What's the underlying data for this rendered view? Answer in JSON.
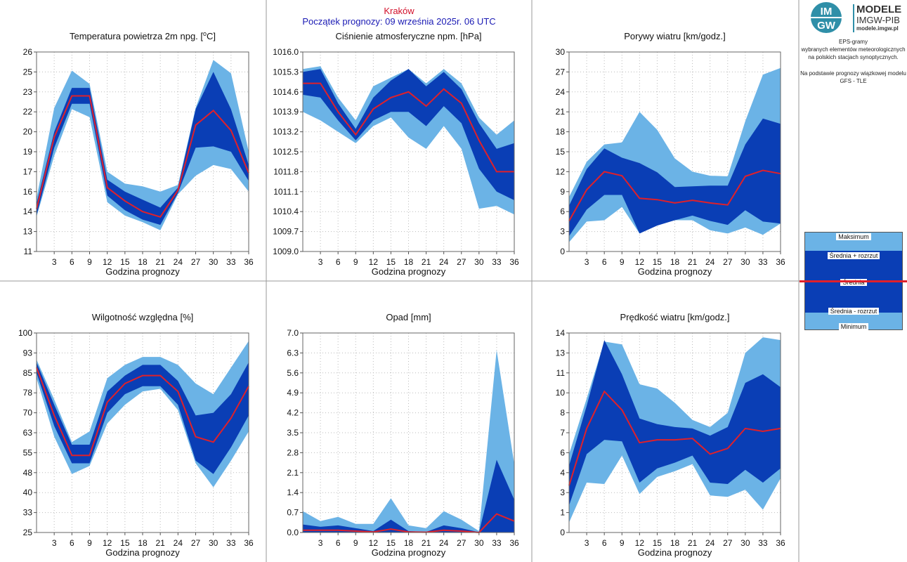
{
  "header": {
    "city": "Kraków",
    "start": "Początek prognozy: 09 września 2025r. 06 UTC"
  },
  "sidebar": {
    "logo_title": "MODELE",
    "logo_org": "IMGW-PIB",
    "logo_url": "modele.imgw.pl",
    "logo_mark_top": "IM",
    "logo_mark_bottom": "GW",
    "desc_lines": [
      "EPS-gramy",
      "wybranych elementów meteorologicznych",
      "na polskich stacjach  synoptycznych."
    ],
    "model_lines": [
      "Na podstawie prognozy wiązkowej modelu",
      "GFS - TLE"
    ]
  },
  "legend": {
    "max": "Maksimum",
    "mean_plus": "Średnia + rozrzut",
    "mean": "Średnia",
    "mean_minus": "Średnia - rozrzut",
    "min": "Minimum"
  },
  "colors": {
    "outer": "#6bb3e6",
    "inner": "#0a3eb5",
    "mean": "#e0202a",
    "frame": "#666666"
  },
  "chart_data": [
    {
      "type": "area",
      "title": "Temperatura powietrza 2m npg. [°C]",
      "title_main": "Temperatura powietrza 2m npg. [",
      "title_sup": "o",
      "title_end": "C]",
      "xlabel": "Godzina prognozy",
      "x": [
        0,
        3,
        6,
        9,
        12,
        15,
        18,
        21,
        24,
        27,
        30,
        33,
        36
      ],
      "xticks": [
        "3",
        "6",
        "9",
        "12",
        "15",
        "18",
        "21",
        "24",
        "27",
        "30",
        "33",
        "36"
      ],
      "ylim": [
        11,
        26
      ],
      "yticks": [
        "11",
        "13",
        "14",
        "16",
        "17",
        "19",
        "20",
        "22",
        "23",
        "25",
        "26"
      ],
      "series": [
        {
          "name": "Maksimum",
          "values": [
            15.0,
            21.8,
            24.6,
            23.6,
            17.0,
            16.1,
            15.9,
            15.5,
            16.0,
            21.8,
            25.4,
            24.4,
            18.5
          ]
        },
        {
          "name": "Średnia + rozrzut",
          "values": [
            14.6,
            20.0,
            23.3,
            23.3,
            16.4,
            15.5,
            14.9,
            14.3,
            15.8,
            21.7,
            24.5,
            21.7,
            17.5
          ]
        },
        {
          "name": "Średnia",
          "values": [
            14.2,
            19.6,
            22.7,
            22.7,
            15.8,
            14.8,
            14.0,
            13.6,
            15.6,
            20.5,
            21.6,
            20.1,
            16.9
          ]
        },
        {
          "name": "Średnia - rozrzut",
          "values": [
            13.7,
            18.8,
            22.1,
            22.1,
            15.2,
            14.1,
            13.4,
            13.0,
            15.4,
            18.8,
            18.9,
            18.5,
            16.3
          ]
        },
        {
          "name": "Minimum",
          "values": [
            13.6,
            18.2,
            21.7,
            21.1,
            14.7,
            13.7,
            13.2,
            12.6,
            15.3,
            16.7,
            17.5,
            17.2,
            15.5
          ]
        }
      ]
    },
    {
      "type": "area",
      "title": "Ciśnienie atmosferyczne npm. [hPa]",
      "xlabel": "Godzina prognozy",
      "x": [
        0,
        3,
        6,
        9,
        12,
        15,
        18,
        21,
        24,
        27,
        30,
        33,
        36
      ],
      "xticks": [
        "3",
        "6",
        "9",
        "12",
        "15",
        "18",
        "21",
        "24",
        "27",
        "30",
        "33",
        "36"
      ],
      "ylim": [
        1009.0,
        1016.0
      ],
      "yticks": [
        "1009.0",
        "1009.7",
        "1010.4",
        "1011.1",
        "1011.8",
        "1012.5",
        "1013.2",
        "1013.9",
        "1014.6",
        "1015.3",
        "1016.0"
      ],
      "series": [
        {
          "name": "Maksimum",
          "values": [
            1015.4,
            1015.5,
            1014.4,
            1013.6,
            1014.8,
            1015.1,
            1015.4,
            1014.9,
            1015.4,
            1014.9,
            1013.7,
            1013.1,
            1013.6
          ]
        },
        {
          "name": "Średnia + rozrzut",
          "values": [
            1015.3,
            1015.4,
            1014.2,
            1013.3,
            1014.4,
            1015.0,
            1015.4,
            1014.8,
            1015.3,
            1014.7,
            1013.5,
            1012.6,
            1012.8
          ]
        },
        {
          "name": "Średnia",
          "values": [
            1014.9,
            1014.9,
            1013.9,
            1013.1,
            1014.0,
            1014.4,
            1014.6,
            1014.1,
            1014.7,
            1014.2,
            1012.9,
            1011.8,
            1011.8
          ]
        },
        {
          "name": "Średnia - rozrzut",
          "values": [
            1014.5,
            1014.4,
            1013.6,
            1012.9,
            1013.6,
            1013.9,
            1013.9,
            1013.4,
            1014.1,
            1013.5,
            1011.9,
            1011.1,
            1010.8
          ]
        },
        {
          "name": "Minimum",
          "values": [
            1013.9,
            1013.6,
            1013.2,
            1012.8,
            1013.4,
            1013.7,
            1013.0,
            1012.6,
            1013.4,
            1012.6,
            1010.5,
            1010.6,
            1010.3
          ]
        }
      ]
    },
    {
      "type": "area",
      "title": "Porywy wiatru [km/godz.]",
      "xlabel": "Godzina prognozy",
      "x": [
        0,
        3,
        6,
        9,
        12,
        15,
        18,
        21,
        24,
        27,
        30,
        33,
        36
      ],
      "xticks": [
        "3",
        "6",
        "9",
        "12",
        "15",
        "18",
        "21",
        "24",
        "27",
        "30",
        "33",
        "36"
      ],
      "ylim": [
        0,
        30
      ],
      "yticks": [
        "0",
        "3",
        "6",
        "9",
        "12",
        "15",
        "18",
        "21",
        "24",
        "27",
        "30"
      ],
      "series": [
        {
          "name": "Maksimum",
          "values": [
            8.2,
            13.5,
            16.1,
            16.4,
            21.0,
            18.3,
            14.0,
            12.0,
            11.4,
            11.3,
            19.6,
            26.6,
            27.6
          ]
        },
        {
          "name": "Średnia + rozrzut",
          "values": [
            6.9,
            12.4,
            15.5,
            14.1,
            13.3,
            11.9,
            9.7,
            9.8,
            9.9,
            9.9,
            16.1,
            20.0,
            19.2
          ]
        },
        {
          "name": "Średnia",
          "values": [
            4.6,
            9.3,
            12.0,
            11.4,
            8.0,
            7.8,
            7.3,
            7.7,
            7.3,
            7.0,
            11.3,
            12.2,
            11.7
          ]
        },
        {
          "name": "Średnia - rozrzut",
          "values": [
            2.3,
            6.3,
            8.5,
            8.5,
            2.7,
            3.9,
            4.7,
            5.4,
            4.6,
            4.0,
            6.2,
            4.5,
            4.2
          ]
        },
        {
          "name": "Minimum",
          "values": [
            1.4,
            4.5,
            4.7,
            6.7,
            2.7,
            4.0,
            4.7,
            4.7,
            3.2,
            2.7,
            3.6,
            2.5,
            4.2
          ]
        }
      ]
    },
    {
      "type": "area",
      "title": "Wilgotność względna [%]",
      "xlabel": "Godzina prognozy",
      "x": [
        0,
        3,
        6,
        9,
        12,
        15,
        18,
        21,
        24,
        27,
        30,
        33,
        36
      ],
      "xticks": [
        "3",
        "6",
        "9",
        "12",
        "15",
        "18",
        "21",
        "24",
        "27",
        "30",
        "33",
        "36"
      ],
      "ylim": [
        25,
        100
      ],
      "yticks": [
        "25",
        "33",
        "40",
        "48",
        "55",
        "63",
        "70",
        "78",
        "85",
        "93",
        "100"
      ],
      "series": [
        {
          "name": "Maksimum",
          "values": [
            90,
            75,
            59,
            63,
            83,
            88,
            91,
            91,
            88,
            81,
            77,
            87,
            97
          ]
        },
        {
          "name": "Średnia + rozrzut",
          "values": [
            89,
            73,
            58,
            58,
            78,
            84,
            88,
            88,
            82,
            69,
            70,
            77,
            89
          ]
        },
        {
          "name": "Średnia",
          "values": [
            87,
            69,
            54,
            54,
            74,
            81,
            84,
            84,
            78,
            61,
            59,
            68,
            80
          ]
        },
        {
          "name": "Średnia - rozrzut",
          "values": [
            85,
            65,
            51,
            51,
            70,
            77,
            80,
            80,
            73,
            52,
            47,
            57,
            69
          ]
        },
        {
          "name": "Minimum",
          "values": [
            83,
            61,
            47,
            50,
            66,
            73,
            78,
            79,
            71,
            51,
            42,
            52,
            63
          ]
        }
      ]
    },
    {
      "type": "area",
      "title": "Opad [mm]",
      "xlabel": "Godzina prognozy",
      "x": [
        0,
        3,
        6,
        9,
        12,
        15,
        18,
        21,
        24,
        27,
        30,
        33,
        36
      ],
      "xticks": [
        "3",
        "6",
        "9",
        "12",
        "15",
        "18",
        "21",
        "24",
        "27",
        "30",
        "33",
        "36"
      ],
      "ylim": [
        0,
        7
      ],
      "yticks": [
        "0.0",
        "0.7",
        "1.4",
        "2.1",
        "2.8",
        "3.5",
        "4.2",
        "4.9",
        "5.6",
        "6.3",
        "7.0"
      ],
      "series": [
        {
          "name": "Maksimum",
          "values": [
            0.75,
            0.4,
            0.55,
            0.3,
            0.3,
            1.2,
            0.25,
            0.15,
            0.75,
            0.45,
            0.05,
            6.4,
            2.4
          ]
        },
        {
          "name": "Średnia + rozrzut",
          "values": [
            0.28,
            0.2,
            0.25,
            0.15,
            0.05,
            0.45,
            0.05,
            0.02,
            0.25,
            0.15,
            0.01,
            2.55,
            1.15
          ]
        },
        {
          "name": "Średnia",
          "values": [
            0.08,
            0.08,
            0.08,
            0.05,
            0.02,
            0.12,
            0.02,
            0.01,
            0.08,
            0.05,
            0.0,
            0.65,
            0.4
          ]
        },
        {
          "name": "Średnia - rozrzut",
          "values": [
            0.0,
            0.0,
            0.0,
            0.0,
            0.0,
            0.0,
            0.0,
            0.0,
            0.0,
            0.0,
            0.0,
            0.0,
            0.0
          ]
        },
        {
          "name": "Minimum",
          "values": [
            0.0,
            0.0,
            0.0,
            0.0,
            0.0,
            0.0,
            0.0,
            0.0,
            0.0,
            0.0,
            0.0,
            0.0,
            0.0
          ]
        }
      ]
    },
    {
      "type": "area",
      "title": "Prędkość wiatru [km/godz.]",
      "xlabel": "Godzina prognozy",
      "x": [
        0,
        3,
        6,
        9,
        12,
        15,
        18,
        21,
        24,
        27,
        30,
        33,
        36
      ],
      "xticks": [
        "3",
        "6",
        "9",
        "12",
        "15",
        "18",
        "21",
        "24",
        "27",
        "30",
        "33",
        "36"
      ],
      "ylim": [
        0,
        14
      ],
      "yticks": [
        "0",
        "1",
        "3",
        "4",
        "6",
        "7",
        "8",
        "10",
        "11",
        "13",
        "14"
      ],
      "series": [
        {
          "name": "Maksimum",
          "values": [
            5.5,
            9.4,
            13.4,
            13.2,
            10.4,
            10.1,
            9.1,
            7.9,
            7.4,
            8.4,
            12.6,
            13.7,
            13.5
          ]
        },
        {
          "name": "Średnia + rozrzut",
          "values": [
            4.7,
            8.9,
            13.5,
            11.1,
            8.0,
            7.6,
            7.4,
            7.3,
            6.8,
            7.4,
            10.5,
            11.1,
            10.2
          ]
        },
        {
          "name": "Średnia",
          "values": [
            3.3,
            7.3,
            9.9,
            8.6,
            6.3,
            6.5,
            6.5,
            6.6,
            5.5,
            5.9,
            7.3,
            7.1,
            7.3
          ]
        },
        {
          "name": "Średnia - rozrzut",
          "values": [
            1.9,
            5.5,
            6.5,
            6.4,
            3.5,
            4.5,
            4.9,
            5.4,
            3.5,
            3.4,
            4.4,
            3.5,
            4.5
          ]
        },
        {
          "name": "Minimum",
          "values": [
            0.7,
            3.5,
            3.4,
            5.4,
            2.7,
            3.9,
            4.3,
            4.8,
            2.6,
            2.5,
            3.0,
            1.6,
            3.8
          ]
        }
      ]
    }
  ]
}
